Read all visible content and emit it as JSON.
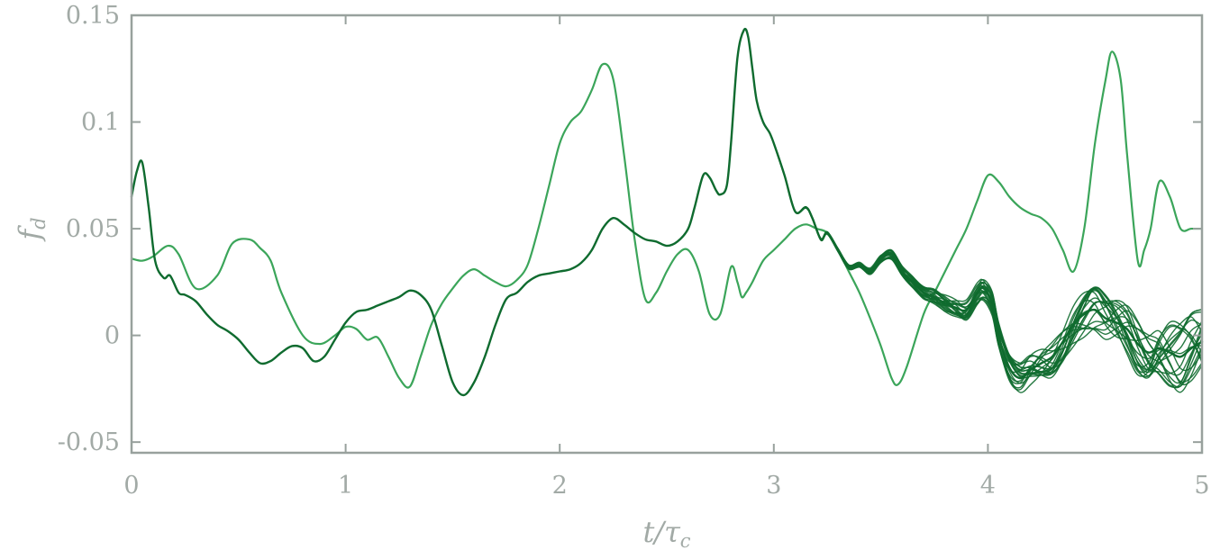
{
  "chart_data": {
    "type": "line",
    "title": "",
    "xlabel": "t/τc",
    "ylabel": "fd",
    "xlim": [
      0,
      5
    ],
    "ylim": [
      -0.055,
      0.15
    ],
    "grid": false,
    "legend": "none",
    "xticks": [
      {
        "value": 0,
        "label": "0"
      },
      {
        "value": 1,
        "label": "1"
      },
      {
        "value": 2,
        "label": "2"
      },
      {
        "value": 3,
        "label": "3"
      },
      {
        "value": 4,
        "label": "4"
      },
      {
        "value": 5,
        "label": "5"
      }
    ],
    "yticks": [
      {
        "value": -0.05,
        "label": "-0.05"
      },
      {
        "value": 0,
        "label": "0"
      },
      {
        "value": 0.05,
        "label": "0.05"
      },
      {
        "value": 0.1,
        "label": "0.1"
      },
      {
        "value": 0.15,
        "label": "0.15"
      }
    ],
    "colors": {
      "light_series": "#3ba55a",
      "dark_series": "#0f6b2f",
      "axis": "#98a19d",
      "text": "#a2aaa6"
    },
    "series": [
      {
        "color": "#3ba55a",
        "x": [
          0,
          0.05,
          0.1,
          0.17,
          0.22,
          0.3,
          0.4,
          0.47,
          0.55,
          0.6,
          0.65,
          0.7,
          0.8,
          0.88,
          0.95,
          1.0,
          1.05,
          1.1,
          1.15,
          1.2,
          1.25,
          1.3,
          1.35,
          1.4,
          1.45,
          1.5,
          1.55,
          1.6,
          1.65,
          1.7,
          1.75,
          1.8,
          1.85,
          1.9,
          1.95,
          2.0,
          2.05,
          2.1,
          2.15,
          2.2,
          2.25,
          2.3,
          2.35,
          2.4,
          2.45,
          2.5,
          2.55,
          2.6,
          2.65,
          2.7,
          2.75,
          2.8,
          2.83,
          2.85,
          2.87,
          2.9,
          2.95,
          3.0,
          3.05,
          3.1,
          3.15,
          3.2,
          3.25,
          3.3,
          3.35,
          3.4,
          3.45,
          3.5,
          3.55,
          3.58,
          3.62,
          3.7,
          3.75,
          3.8,
          3.85,
          3.9,
          3.95,
          4.0,
          4.05,
          4.1,
          4.15,
          4.2,
          4.25,
          4.3,
          4.35,
          4.4,
          4.45,
          4.5,
          4.55,
          4.58,
          4.62,
          4.65,
          4.7,
          4.73,
          4.76,
          4.8,
          4.85,
          4.9,
          4.95,
          5.0
        ],
        "y": [
          0.036,
          0.035,
          0.037,
          0.042,
          0.038,
          0.022,
          0.028,
          0.043,
          0.045,
          0.041,
          0.035,
          0.02,
          0.0,
          -0.004,
          0.0,
          0.004,
          0.003,
          -0.002,
          -0.001,
          -0.01,
          -0.02,
          -0.024,
          -0.01,
          0.005,
          0.015,
          0.022,
          0.028,
          0.031,
          0.028,
          0.025,
          0.023,
          0.026,
          0.033,
          0.05,
          0.07,
          0.09,
          0.1,
          0.105,
          0.115,
          0.127,
          0.12,
          0.085,
          0.045,
          0.017,
          0.02,
          0.03,
          0.038,
          0.04,
          0.03,
          0.01,
          0.01,
          0.032,
          0.025,
          0.018,
          0.02,
          0.025,
          0.035,
          0.04,
          0.045,
          0.05,
          0.052,
          0.05,
          0.048,
          0.04,
          0.03,
          0.02,
          0.008,
          -0.005,
          -0.02,
          -0.023,
          -0.015,
          0.01,
          0.02,
          0.03,
          0.04,
          0.05,
          0.063,
          0.075,
          0.072,
          0.065,
          0.06,
          0.057,
          0.055,
          0.05,
          0.04,
          0.03,
          0.05,
          0.09,
          0.12,
          0.133,
          0.12,
          0.085,
          0.035,
          0.04,
          0.05,
          0.072,
          0.065,
          0.05,
          0.05,
          0.05
        ]
      },
      {
        "color": "#0f6b2f",
        "x": [
          0,
          0.025,
          0.05,
          0.08,
          0.11,
          0.15,
          0.18,
          0.22,
          0.25,
          0.3,
          0.35,
          0.4,
          0.45,
          0.5,
          0.55,
          0.6,
          0.65,
          0.7,
          0.75,
          0.8,
          0.85,
          0.9,
          0.95,
          1.0,
          1.05,
          1.1,
          1.15,
          1.2,
          1.25,
          1.3,
          1.35,
          1.4,
          1.45,
          1.5,
          1.55,
          1.6,
          1.65,
          1.7,
          1.75,
          1.8,
          1.85,
          1.9,
          1.95,
          2.0,
          2.05,
          2.1,
          2.15,
          2.2,
          2.25,
          2.3,
          2.35,
          2.4,
          2.45,
          2.5,
          2.55,
          2.6,
          2.63,
          2.67,
          2.7,
          2.73,
          2.75,
          2.78,
          2.8,
          2.83,
          2.86,
          2.88,
          2.9,
          2.92,
          2.95,
          2.98,
          3.0,
          3.05,
          3.1,
          3.15,
          3.18,
          3.22,
          3.25,
          3.3,
          3.35,
          3.4,
          3.45,
          3.5,
          3.55,
          3.6,
          3.65,
          3.7,
          3.75,
          3.8,
          3.85,
          3.9,
          3.95,
          3.98,
          4.02,
          4.05,
          4.1,
          4.15,
          4.2,
          4.25,
          4.3,
          4.35,
          4.4,
          4.45,
          4.5,
          4.55,
          4.6,
          4.65,
          4.7,
          4.75,
          4.8,
          4.85,
          4.9,
          4.95,
          5.0
        ],
        "y": [
          0.065,
          0.077,
          0.081,
          0.06,
          0.035,
          0.027,
          0.028,
          0.02,
          0.019,
          0.016,
          0.01,
          0.005,
          0.002,
          -0.002,
          -0.008,
          -0.013,
          -0.012,
          -0.008,
          -0.005,
          -0.006,
          -0.012,
          -0.01,
          -0.002,
          0.006,
          0.011,
          0.012,
          0.014,
          0.016,
          0.018,
          0.021,
          0.019,
          0.012,
          -0.005,
          -0.022,
          -0.028,
          -0.022,
          -0.01,
          0.005,
          0.017,
          0.02,
          0.025,
          0.028,
          0.029,
          0.03,
          0.031,
          0.034,
          0.04,
          0.05,
          0.055,
          0.052,
          0.048,
          0.045,
          0.044,
          0.042,
          0.044,
          0.05,
          0.06,
          0.075,
          0.074,
          0.068,
          0.066,
          0.07,
          0.09,
          0.13,
          0.143,
          0.14,
          0.125,
          0.11,
          0.1,
          0.095,
          0.09,
          0.075,
          0.058,
          0.06,
          0.055,
          0.045,
          0.048,
          0.04,
          0.032,
          0.033,
          0.03,
          0.036,
          0.038,
          0.03,
          0.025,
          0.02,
          0.018,
          0.015,
          0.013,
          0.012,
          0.02,
          0.022,
          0.015,
          0.0,
          -0.015,
          -0.02,
          -0.016,
          -0.013,
          -0.01,
          -0.003,
          0.005,
          0.01,
          0.012,
          0.008,
          0.006,
          0.003,
          -0.004,
          -0.008,
          -0.006,
          -0.008,
          -0.01,
          -0.006,
          -0.003
        ]
      }
    ],
    "ensemble_region": {
      "color": "#0f6b2f",
      "x_start": 3.0,
      "x_end": 5.0,
      "members": 20
    }
  }
}
